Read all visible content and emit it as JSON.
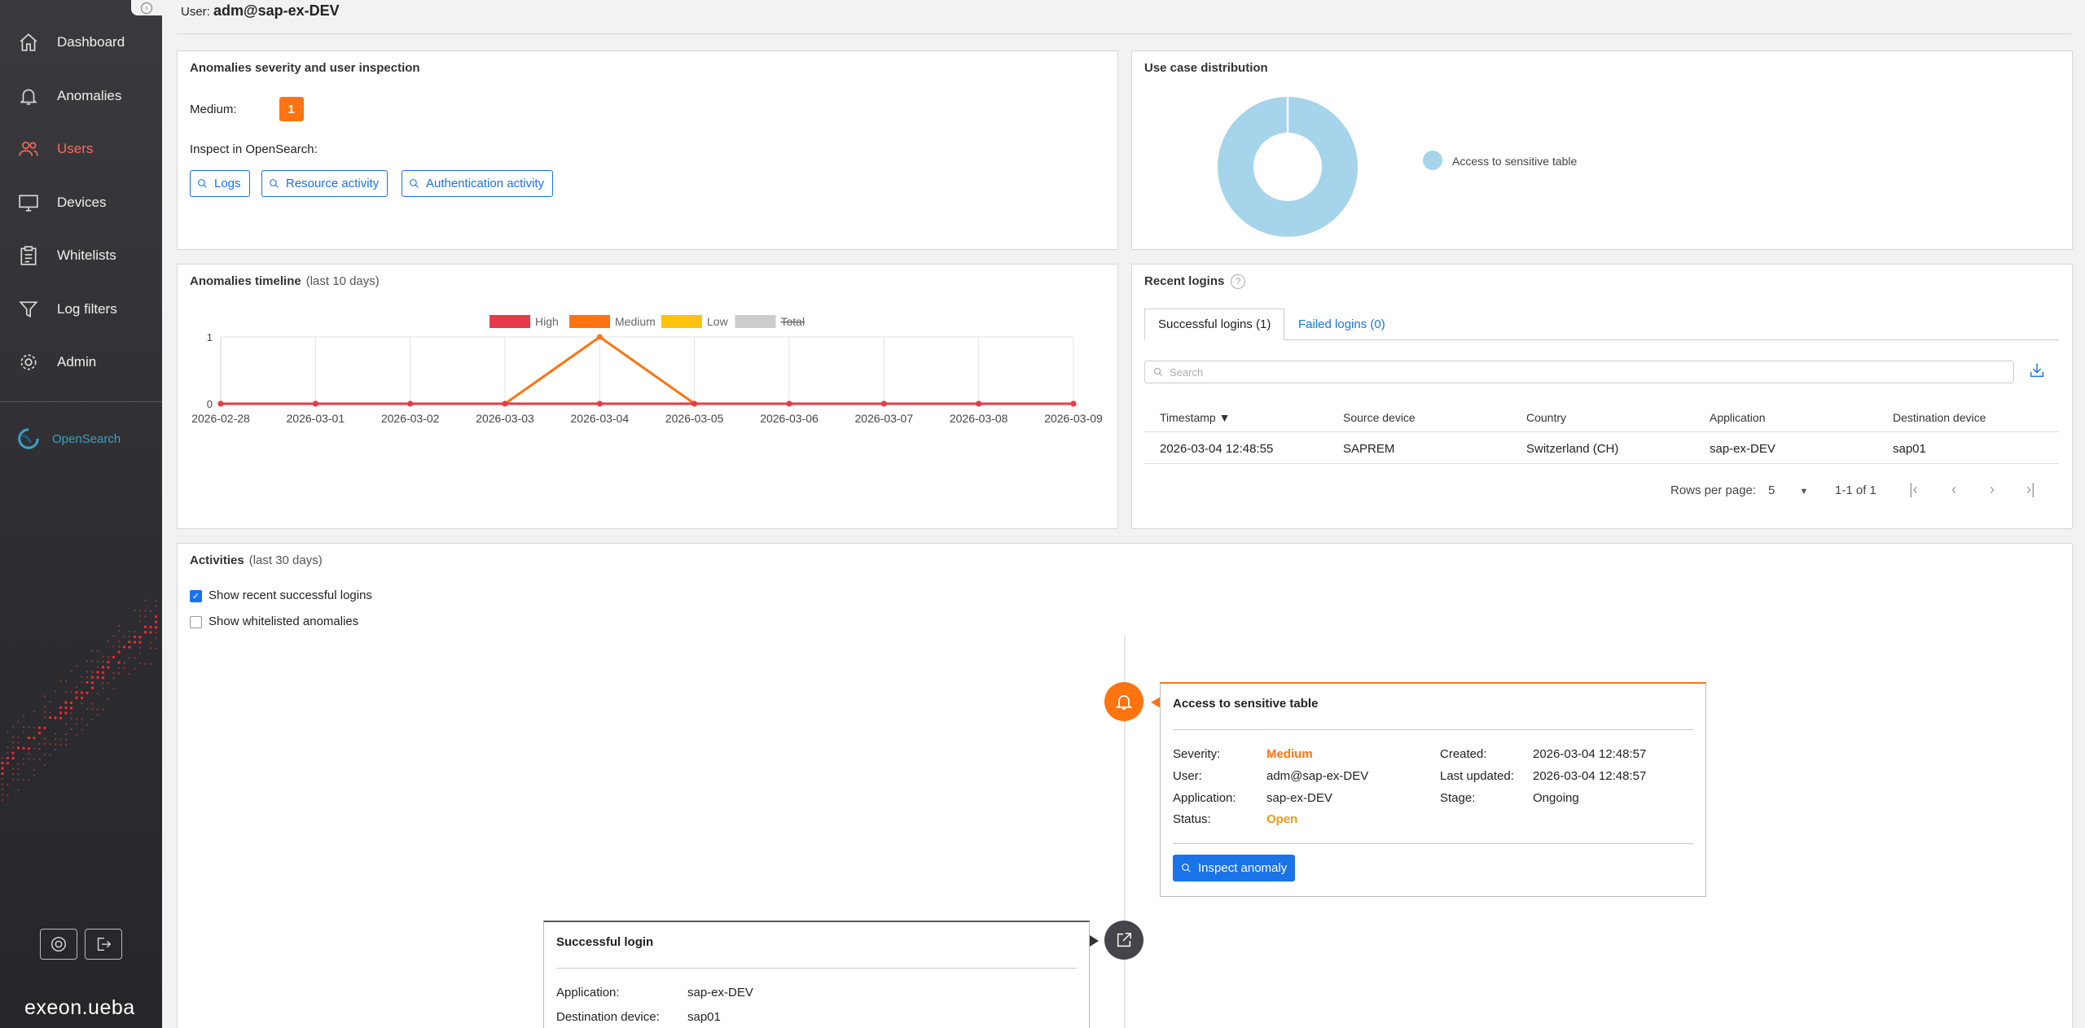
{
  "sidebar": {
    "items": [
      {
        "label": "Dashboard",
        "icon": "home-icon"
      },
      {
        "label": "Anomalies",
        "icon": "bell-icon"
      },
      {
        "label": "Users",
        "icon": "users-icon",
        "active": true
      },
      {
        "label": "Devices",
        "icon": "monitor-icon"
      },
      {
        "label": "Whitelists",
        "icon": "clipboard-icon"
      },
      {
        "label": "Log filters",
        "icon": "filter-icon"
      },
      {
        "label": "Admin",
        "icon": "gear-icon"
      }
    ],
    "opensearch_label": "OpenSearch",
    "brand": "exeon.ueba"
  },
  "header": {
    "user_prefix": "User:",
    "user": "adm@sap-ex-DEV"
  },
  "severity_card": {
    "title": "Anomalies severity and user inspection",
    "medium_label": "Medium:",
    "medium_count": "1",
    "inspect_label": "Inspect in OpenSearch:",
    "buttons": [
      "Logs",
      "Resource activity",
      "Authentication activity"
    ]
  },
  "use_case_card": {
    "title": "Use case distribution",
    "legend": "Access to sensitive table"
  },
  "timeline_card": {
    "title": "Anomalies timeline",
    "subtitle": "(last 10 days)"
  },
  "chart_data": {
    "type": "line",
    "x": [
      "2026-02-28",
      "2026-03-01",
      "2026-03-02",
      "2026-03-03",
      "2026-03-04",
      "2026-03-05",
      "2026-03-06",
      "2026-03-07",
      "2026-03-08",
      "2026-03-09"
    ],
    "series": [
      {
        "name": "High",
        "color": "#e8394a",
        "values": [
          0,
          0,
          0,
          0,
          0,
          0,
          0,
          0,
          0,
          0
        ]
      },
      {
        "name": "Medium",
        "color": "#ff7310",
        "values": [
          0,
          0,
          0,
          0,
          1,
          0,
          0,
          0,
          0,
          0
        ]
      },
      {
        "name": "Low",
        "color": "#ffc20e",
        "values": [
          0,
          0,
          0,
          0,
          0,
          0,
          0,
          0,
          0,
          0
        ]
      },
      {
        "name": "Total",
        "color": "#cccccc",
        "hidden": true,
        "values": [
          0,
          0,
          0,
          0,
          1,
          0,
          0,
          0,
          0,
          0
        ]
      }
    ],
    "ylim": [
      0,
      1
    ],
    "yticks": [
      "0",
      "1"
    ],
    "legend": "top",
    "grid": true
  },
  "use_case_chart": {
    "type": "pie",
    "slices": [
      {
        "label": "Access to sensitive table",
        "value": 1,
        "color": "#a6d4ea"
      }
    ]
  },
  "logins_card": {
    "title": "Recent logins",
    "help": "?",
    "tab_success": "Successful logins (1)",
    "tab_failed": "Failed logins (0)",
    "search_placeholder": "Search",
    "columns": [
      "Timestamp ▼",
      "Source device",
      "Country",
      "Application",
      "Destination device"
    ],
    "rows": [
      [
        "2026-03-04 12:48:55",
        "SAPREM",
        "Switzerland (CH)",
        "sap-ex-DEV",
        "sap01"
      ]
    ],
    "rows_per_page_label": "Rows per page:",
    "rows_per_page": "5",
    "range": "1-1 of 1"
  },
  "activities": {
    "title": "Activities",
    "subtitle": "(last 30 days)",
    "check_logins": "Show recent successful logins",
    "check_whitelisted": "Show whitelisted anomalies",
    "anomaly": {
      "title": "Access to sensitive table",
      "severity_k": "Severity:",
      "severity_v": "Medium",
      "user_k": "User:",
      "user_v": "adm@sap-ex-DEV",
      "application_k": "Application:",
      "application_v": "sap-ex-DEV",
      "status_k": "Status:",
      "status_v": "Open",
      "created_k": "Created:",
      "created_v": "2026-03-04 12:48:57",
      "updated_k": "Last updated:",
      "updated_v": "2026-03-04 12:48:57",
      "stage_k": "Stage:",
      "stage_v": "Ongoing",
      "button": "Inspect anomaly"
    },
    "login": {
      "title": "Successful login",
      "application_k": "Application:",
      "application_v": "sap-ex-DEV",
      "dest_k": "Destination device:",
      "dest_v": "sap01"
    }
  }
}
